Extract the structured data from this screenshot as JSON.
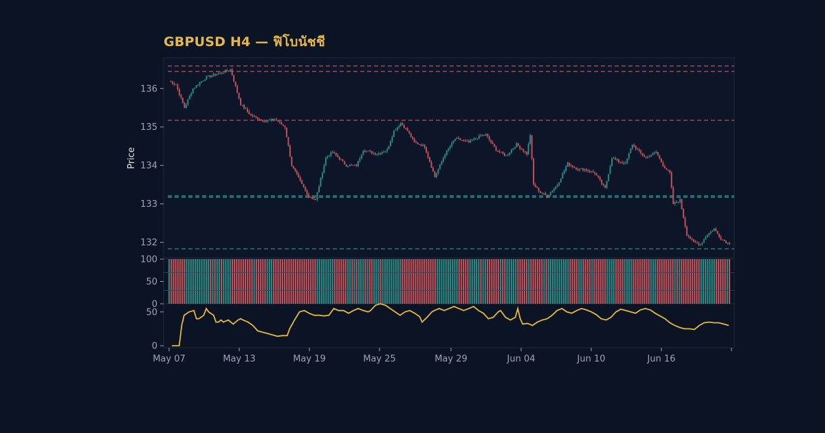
{
  "title": "GBPUSD H4 — ฟิโบนัชชี",
  "colors": {
    "background": "#0b1424",
    "title": "#e6b84a",
    "up": "#2b8a86",
    "down": "#c2525a",
    "rsi_line": "#e8b83a",
    "panel_border": "#1d2a3d"
  },
  "chart_data": [
    {
      "type": "candlestick",
      "ylabel": "Price",
      "ylim": [
        131.6,
        136.8
      ],
      "yticks": [
        "132",
        "133",
        "134",
        "135",
        "136"
      ],
      "x_ticks": [
        "May 07",
        "May 13",
        "May 19",
        "May 25",
        "May 29",
        "Jun 04",
        "Jun 10",
        "Jun 16"
      ],
      "close_path": [
        [
          0,
          136.2
        ],
        [
          4,
          136.1
        ],
        [
          9,
          135.5
        ],
        [
          14,
          136.0
        ],
        [
          22,
          136.3
        ],
        [
          30,
          136.4
        ],
        [
          36,
          136.5
        ],
        [
          42,
          135.6
        ],
        [
          48,
          135.3
        ],
        [
          56,
          135.15
        ],
        [
          62,
          135.2
        ],
        [
          68,
          135.0
        ],
        [
          72,
          134.0
        ],
        [
          78,
          133.5
        ],
        [
          82,
          133.2
        ],
        [
          86,
          133.1
        ],
        [
          92,
          134.2
        ],
        [
          96,
          134.35
        ],
        [
          104,
          134.0
        ],
        [
          110,
          134.0
        ],
        [
          114,
          134.4
        ],
        [
          122,
          134.3
        ],
        [
          128,
          134.4
        ],
        [
          132,
          134.9
        ],
        [
          136,
          135.1
        ],
        [
          140,
          134.9
        ],
        [
          144,
          134.6
        ],
        [
          150,
          134.5
        ],
        [
          156,
          133.7
        ],
        [
          162,
          134.3
        ],
        [
          168,
          134.7
        ],
        [
          176,
          134.6
        ],
        [
          182,
          134.75
        ],
        [
          186,
          134.8
        ],
        [
          192,
          134.4
        ],
        [
          198,
          134.25
        ],
        [
          204,
          134.55
        ],
        [
          210,
          134.3
        ],
        [
          212,
          134.8
        ],
        [
          214,
          133.5
        ],
        [
          218,
          133.3
        ],
        [
          222,
          133.2
        ],
        [
          228,
          133.5
        ],
        [
          234,
          134.05
        ],
        [
          240,
          133.9
        ],
        [
          244,
          133.9
        ],
        [
          250,
          133.8
        ],
        [
          256,
          133.4
        ],
        [
          260,
          134.2
        ],
        [
          264,
          134.1
        ],
        [
          268,
          134.05
        ],
        [
          272,
          134.55
        ],
        [
          276,
          134.35
        ],
        [
          280,
          134.2
        ],
        [
          286,
          134.35
        ],
        [
          290,
          134.0
        ],
        [
          294,
          133.8
        ],
        [
          296,
          133.0
        ],
        [
          300,
          133.1
        ],
        [
          304,
          132.2
        ],
        [
          308,
          132.0
        ],
        [
          312,
          131.95
        ],
        [
          316,
          132.2
        ],
        [
          320,
          132.35
        ],
        [
          324,
          132.1
        ],
        [
          328,
          131.98
        ]
      ]
    },
    {
      "type": "bar",
      "name": "volume",
      "ylim": [
        0,
        100
      ],
      "yticks": [
        "0",
        "50",
        "100"
      ],
      "bar_count": 258,
      "bar_value": 100
    },
    {
      "type": "line",
      "name": "rsi",
      "ylim": [
        -3,
        62
      ],
      "yticks": [
        "0",
        "50"
      ],
      "points": [
        [
          0,
          0
        ],
        [
          6,
          0
        ],
        [
          8,
          30
        ],
        [
          10,
          45
        ],
        [
          14,
          50
        ],
        [
          18,
          52
        ],
        [
          20,
          40
        ],
        [
          22,
          40
        ],
        [
          26,
          45
        ],
        [
          28,
          55
        ],
        [
          30,
          50
        ],
        [
          34,
          45
        ],
        [
          36,
          35
        ],
        [
          38,
          35
        ],
        [
          40,
          38
        ],
        [
          42,
          35
        ],
        [
          46,
          38
        ],
        [
          48,
          35
        ],
        [
          50,
          32
        ],
        [
          54,
          38
        ],
        [
          56,
          40
        ],
        [
          58,
          38
        ],
        [
          62,
          35
        ],
        [
          66,
          30
        ],
        [
          70,
          22
        ],
        [
          74,
          20
        ],
        [
          78,
          18
        ],
        [
          80,
          17
        ],
        [
          84,
          15
        ],
        [
          86,
          14
        ],
        [
          90,
          15
        ],
        [
          94,
          15
        ],
        [
          96,
          25
        ],
        [
          100,
          38
        ],
        [
          104,
          50
        ],
        [
          108,
          52
        ],
        [
          112,
          48
        ],
        [
          116,
          45
        ],
        [
          120,
          45
        ],
        [
          124,
          44
        ],
        [
          128,
          45
        ],
        [
          132,
          55
        ],
        [
          136,
          52
        ],
        [
          140,
          52
        ],
        [
          144,
          48
        ],
        [
          148,
          52
        ],
        [
          152,
          55
        ],
        [
          156,
          52
        ],
        [
          160,
          50
        ],
        [
          162,
          52
        ],
        [
          166,
          60
        ],
        [
          170,
          62
        ],
        [
          174,
          60
        ],
        [
          178,
          55
        ],
        [
          182,
          50
        ],
        [
          186,
          45
        ],
        [
          190,
          50
        ],
        [
          194,
          52
        ],
        [
          198,
          48
        ],
        [
          202,
          43
        ],
        [
          204,
          35
        ],
        [
          208,
          42
        ],
        [
          212,
          50
        ],
        [
          214,
          52
        ],
        [
          218,
          55
        ],
        [
          222,
          52
        ],
        [
          226,
          55
        ],
        [
          230,
          58
        ],
        [
          234,
          55
        ],
        [
          238,
          52
        ],
        [
          242,
          55
        ],
        [
          246,
          58
        ],
        [
          250,
          52
        ],
        [
          254,
          48
        ],
        [
          258,
          40
        ],
        [
          262,
          42
        ],
        [
          266,
          50
        ],
        [
          268,
          52
        ],
        [
          272,
          42
        ],
        [
          276,
          38
        ],
        [
          280,
          42
        ],
        [
          282,
          55
        ],
        [
          284,
          40
        ],
        [
          286,
          32
        ],
        [
          290,
          33
        ],
        [
          294,
          30
        ],
        [
          298,
          35
        ],
        [
          302,
          38
        ],
        [
          306,
          40
        ],
        [
          310,
          45
        ],
        [
          314,
          52
        ],
        [
          318,
          55
        ],
        [
          322,
          50
        ],
        [
          326,
          48
        ],
        [
          330,
          52
        ],
        [
          334,
          55
        ],
        [
          338,
          53
        ],
        [
          342,
          50
        ],
        [
          346,
          46
        ],
        [
          350,
          40
        ],
        [
          354,
          38
        ],
        [
          358,
          42
        ],
        [
          362,
          50
        ],
        [
          366,
          54
        ],
        [
          370,
          52
        ],
        [
          374,
          50
        ],
        [
          378,
          48
        ],
        [
          382,
          53
        ],
        [
          386,
          55
        ],
        [
          390,
          53
        ],
        [
          394,
          48
        ],
        [
          398,
          44
        ],
        [
          402,
          40
        ],
        [
          406,
          34
        ],
        [
          410,
          30
        ],
        [
          414,
          27
        ],
        [
          418,
          25
        ],
        [
          422,
          25
        ],
        [
          426,
          24
        ],
        [
          430,
          30
        ],
        [
          434,
          34
        ],
        [
          438,
          35
        ],
        [
          442,
          34
        ],
        [
          446,
          34
        ],
        [
          450,
          32
        ],
        [
          454,
          30
        ]
      ]
    }
  ]
}
